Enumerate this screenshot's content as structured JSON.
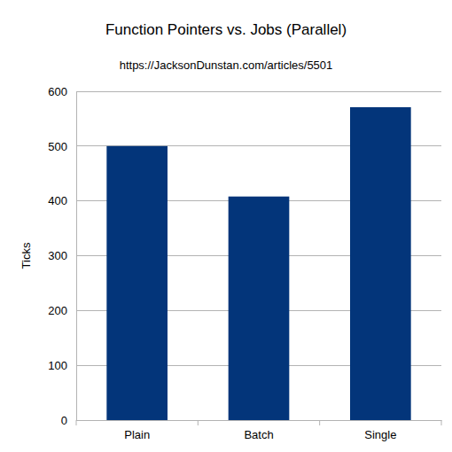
{
  "chart_data": {
    "type": "bar",
    "title": "Function Pointers vs. Jobs (Parallel)",
    "subtitle": "https://JacksonDunstan.com/articles/5501",
    "y_label": "Ticks",
    "categories": [
      "Plain",
      "Batch",
      "Single"
    ],
    "values": [
      500,
      408,
      571
    ],
    "color": "#03357a",
    "ylim": [
      0,
      600
    ],
    "yticks": [
      0,
      100,
      200,
      300,
      400,
      500,
      600
    ],
    "grid": true
  }
}
